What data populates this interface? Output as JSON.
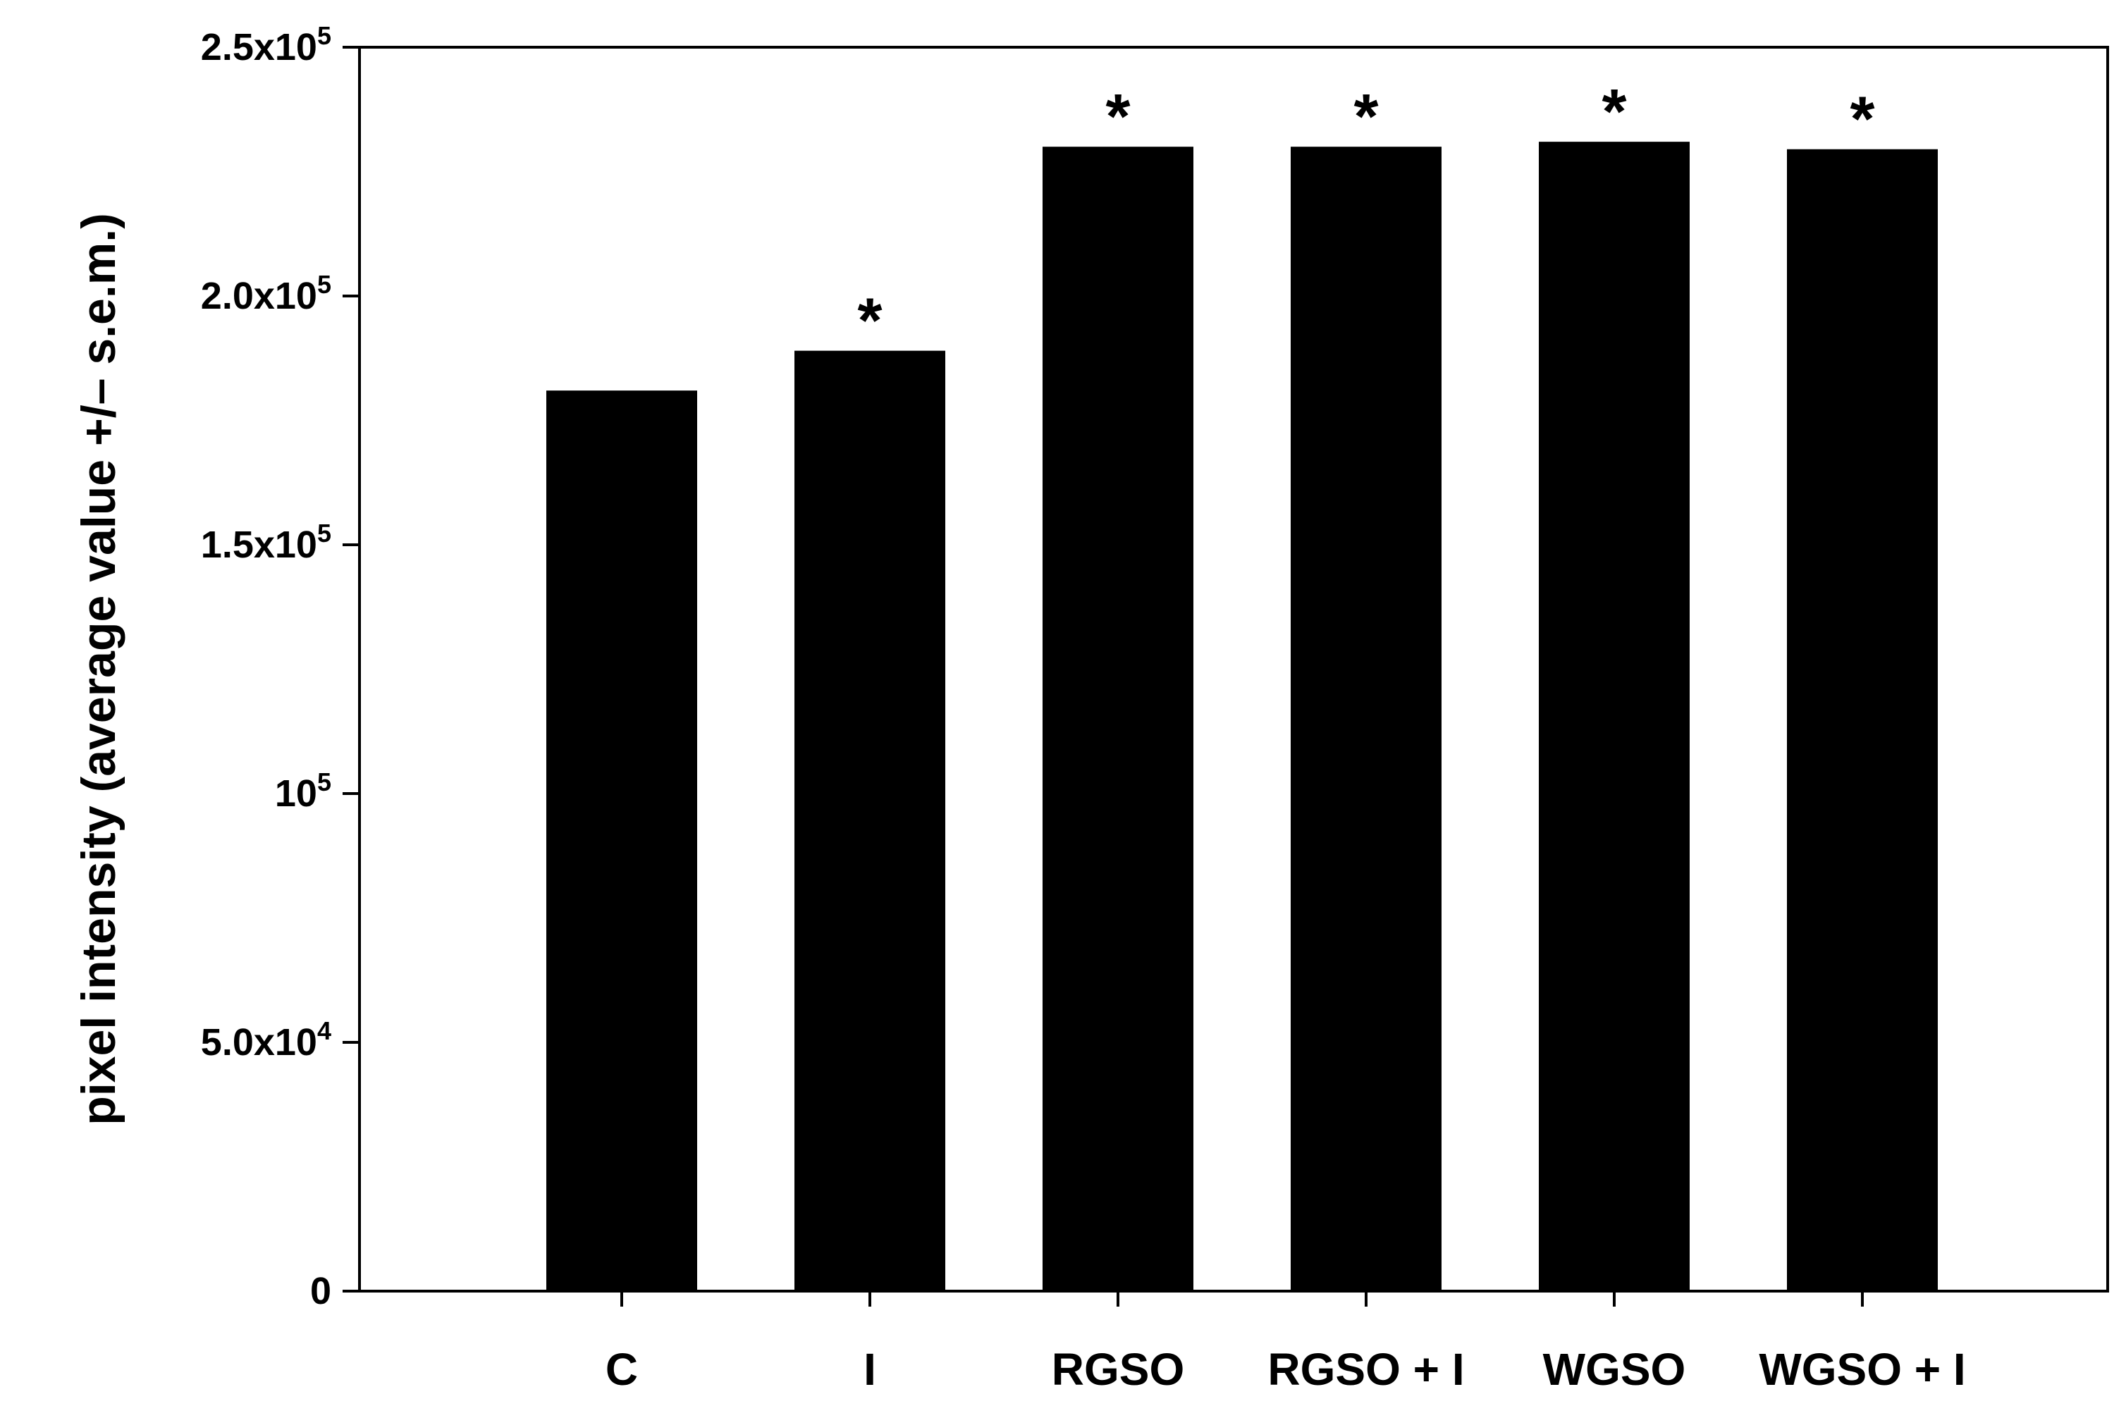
{
  "chart_data": {
    "type": "bar",
    "title": "",
    "xlabel": "",
    "ylabel": "pixel intensity (average value +/– s.e.m.)",
    "ylim": [
      0,
      250000
    ],
    "grid": false,
    "legend": "none",
    "bar_color": "#000000",
    "categories": [
      "C",
      "I",
      "RGSO",
      "RGSO + I",
      "WGSO",
      "WGSO + I"
    ],
    "values": [
      181000,
      189000,
      230000,
      230000,
      231000,
      229500
    ],
    "significance": [
      "",
      "*",
      "*",
      "*",
      "*",
      "*"
    ],
    "yticks": [
      {
        "value": 0,
        "base": "0",
        "exp": ""
      },
      {
        "value": 50000,
        "base": "5.0x10",
        "exp": "4"
      },
      {
        "value": 100000,
        "base": "10",
        "exp": "5"
      },
      {
        "value": 150000,
        "base": "1.5x10",
        "exp": "5"
      },
      {
        "value": 200000,
        "base": "2.0x10",
        "exp": "5"
      },
      {
        "value": 250000,
        "base": "2.5x10",
        "exp": "5"
      }
    ]
  }
}
